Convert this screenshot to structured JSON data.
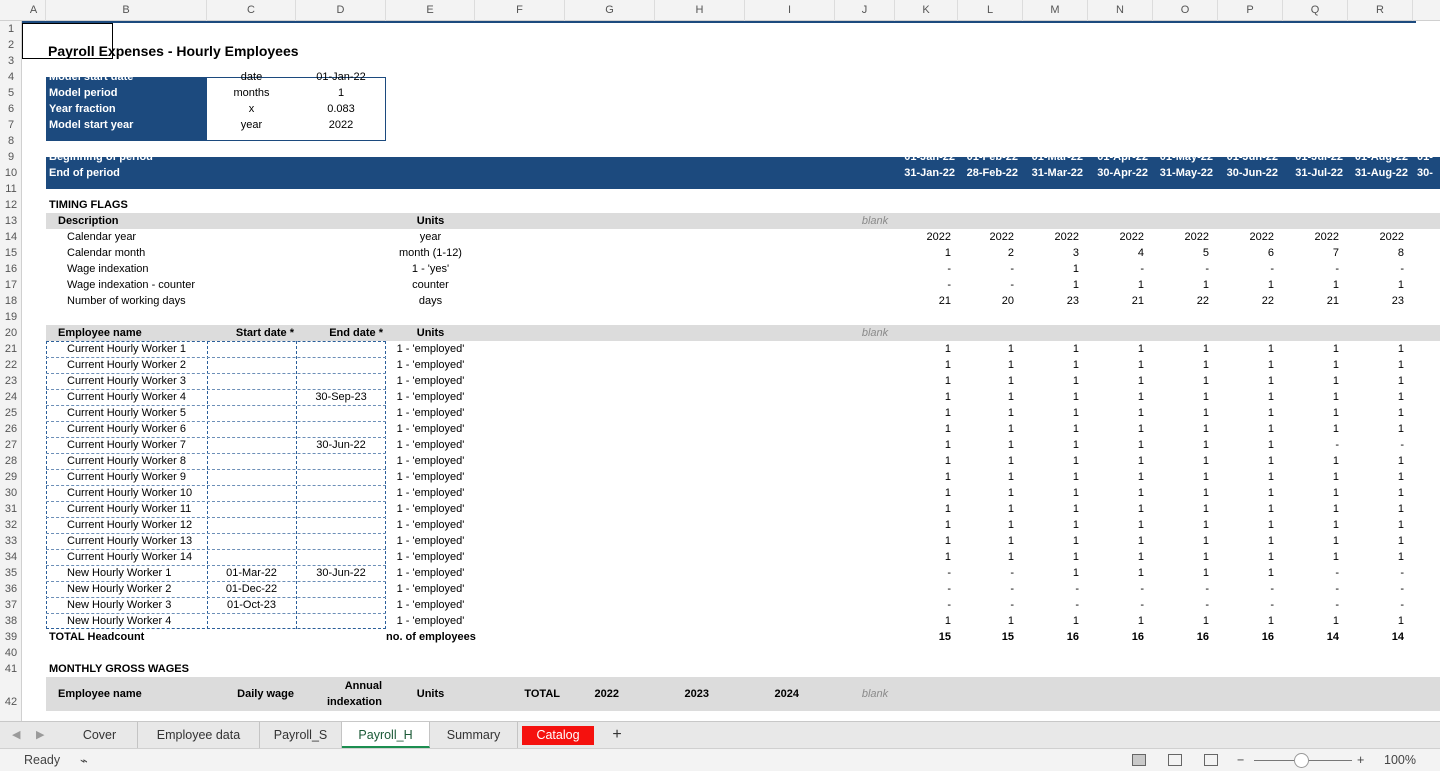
{
  "columns": [
    "A",
    "B",
    "C",
    "D",
    "E",
    "F",
    "G",
    "H",
    "I",
    "J",
    "K",
    "L",
    "M",
    "N",
    "O",
    "P",
    "Q",
    "R"
  ],
  "rows": [
    "1",
    "2",
    "3",
    "4",
    "5",
    "6",
    "7",
    "8",
    "9",
    "10",
    "11",
    "12",
    "13",
    "14",
    "15",
    "16",
    "17",
    "18",
    "19",
    "20",
    "21",
    "22",
    "23",
    "24",
    "25",
    "26",
    "27",
    "28",
    "29",
    "30",
    "31",
    "32",
    "33",
    "34",
    "35",
    "36",
    "37",
    "38",
    "39",
    "40",
    "41",
    "42"
  ],
  "title": "Payroll Expenses - Hourly Employees",
  "model_params": [
    {
      "label": "Model start date",
      "unit": "date",
      "value": "01-Jan-22"
    },
    {
      "label": "Model period",
      "unit": "months",
      "value": "1"
    },
    {
      "label": "Year fraction",
      "unit": "x",
      "value": "0.083"
    },
    {
      "label": "Model start year",
      "unit": "year",
      "value": "2022"
    }
  ],
  "period_header": {
    "begin_label": "Beginning of period",
    "end_label": "End of period",
    "begin": [
      "01-Jan-22",
      "01-Feb-22",
      "01-Mar-22",
      "01-Apr-22",
      "01-May-22",
      "01-Jun-22",
      "01-Jul-22",
      "01-Aug-22",
      "01-"
    ],
    "end": [
      "31-Jan-22",
      "28-Feb-22",
      "31-Mar-22",
      "30-Apr-22",
      "31-May-22",
      "30-Jun-22",
      "31-Jul-22",
      "31-Aug-22",
      "30-"
    ]
  },
  "timing": {
    "section_title": "TIMING FLAGS",
    "header_description": "Description",
    "header_units": "Units",
    "blank": "blank",
    "rows": [
      {
        "desc": "Calendar year",
        "units": "year",
        "values": [
          "2022",
          "2022",
          "2022",
          "2022",
          "2022",
          "2022",
          "2022",
          "2022"
        ]
      },
      {
        "desc": "Calendar month",
        "units": "month (1-12)",
        "values": [
          "1",
          "2",
          "3",
          "4",
          "5",
          "6",
          "7",
          "8"
        ]
      },
      {
        "desc": "Wage indexation",
        "units": "1 - 'yes'",
        "values": [
          "-",
          "-",
          "1",
          "-",
          "-",
          "-",
          "-",
          "-"
        ]
      },
      {
        "desc": "Wage indexation - counter",
        "units": "counter",
        "values": [
          "-",
          "-",
          "1",
          "1",
          "1",
          "1",
          "1",
          "1"
        ]
      },
      {
        "desc": "Number of working days",
        "units": "days",
        "values": [
          "21",
          "20",
          "23",
          "21",
          "22",
          "22",
          "21",
          "23"
        ]
      }
    ]
  },
  "employees": {
    "header_name": "Employee name",
    "header_start": "Start date *",
    "header_end": "End date *",
    "header_units": "Units",
    "blank": "blank",
    "unit_text": "1 - 'employed'",
    "rows": [
      {
        "name": "Current Hourly Worker 1",
        "start": "",
        "end": "",
        "values": [
          "1",
          "1",
          "1",
          "1",
          "1",
          "1",
          "1",
          "1"
        ]
      },
      {
        "name": "Current Hourly Worker 2",
        "start": "",
        "end": "",
        "values": [
          "1",
          "1",
          "1",
          "1",
          "1",
          "1",
          "1",
          "1"
        ]
      },
      {
        "name": "Current Hourly Worker 3",
        "start": "",
        "end": "",
        "values": [
          "1",
          "1",
          "1",
          "1",
          "1",
          "1",
          "1",
          "1"
        ]
      },
      {
        "name": "Current Hourly Worker 4",
        "start": "",
        "end": "30-Sep-23",
        "values": [
          "1",
          "1",
          "1",
          "1",
          "1",
          "1",
          "1",
          "1"
        ]
      },
      {
        "name": "Current Hourly Worker 5",
        "start": "",
        "end": "",
        "values": [
          "1",
          "1",
          "1",
          "1",
          "1",
          "1",
          "1",
          "1"
        ]
      },
      {
        "name": "Current Hourly Worker 6",
        "start": "",
        "end": "",
        "values": [
          "1",
          "1",
          "1",
          "1",
          "1",
          "1",
          "1",
          "1"
        ]
      },
      {
        "name": "Current Hourly Worker 7",
        "start": "",
        "end": "30-Jun-22",
        "values": [
          "1",
          "1",
          "1",
          "1",
          "1",
          "1",
          "-",
          "-"
        ]
      },
      {
        "name": "Current Hourly Worker 8",
        "start": "",
        "end": "",
        "values": [
          "1",
          "1",
          "1",
          "1",
          "1",
          "1",
          "1",
          "1"
        ]
      },
      {
        "name": "Current Hourly Worker 9",
        "start": "",
        "end": "",
        "values": [
          "1",
          "1",
          "1",
          "1",
          "1",
          "1",
          "1",
          "1"
        ]
      },
      {
        "name": "Current Hourly Worker 10",
        "start": "",
        "end": "",
        "values": [
          "1",
          "1",
          "1",
          "1",
          "1",
          "1",
          "1",
          "1"
        ]
      },
      {
        "name": "Current Hourly Worker 11",
        "start": "",
        "end": "",
        "values": [
          "1",
          "1",
          "1",
          "1",
          "1",
          "1",
          "1",
          "1"
        ]
      },
      {
        "name": "Current Hourly Worker 12",
        "start": "",
        "end": "",
        "values": [
          "1",
          "1",
          "1",
          "1",
          "1",
          "1",
          "1",
          "1"
        ]
      },
      {
        "name": "Current Hourly Worker 13",
        "start": "",
        "end": "",
        "values": [
          "1",
          "1",
          "1",
          "1",
          "1",
          "1",
          "1",
          "1"
        ]
      },
      {
        "name": "Current Hourly Worker 14",
        "start": "",
        "end": "",
        "values": [
          "1",
          "1",
          "1",
          "1",
          "1",
          "1",
          "1",
          "1"
        ]
      },
      {
        "name": "New Hourly Worker 1",
        "start": "01-Mar-22",
        "end": "30-Jun-22",
        "values": [
          "-",
          "-",
          "1",
          "1",
          "1",
          "1",
          "-",
          "-"
        ]
      },
      {
        "name": "New Hourly Worker 2",
        "start": "01-Dec-22",
        "end": "",
        "values": [
          "-",
          "-",
          "-",
          "-",
          "-",
          "-",
          "-",
          "-"
        ]
      },
      {
        "name": "New Hourly Worker 3",
        "start": "01-Oct-23",
        "end": "",
        "values": [
          "-",
          "-",
          "-",
          "-",
          "-",
          "-",
          "-",
          "-"
        ]
      },
      {
        "name": "New Hourly Worker 4",
        "start": "",
        "end": "",
        "values": [
          "1",
          "1",
          "1",
          "1",
          "1",
          "1",
          "1",
          "1"
        ]
      }
    ],
    "total_label": "TOTAL Headcount",
    "total_units": "no. of employees",
    "total_values": [
      "15",
      "15",
      "16",
      "16",
      "16",
      "16",
      "14",
      "14"
    ]
  },
  "wages": {
    "section_title": "MONTHLY GROSS WAGES",
    "header_name": "Employee name",
    "header_daily": "Daily wage",
    "header_annual": "Annual",
    "header_indexation": "indexation",
    "header_units": "Units",
    "header_total": "TOTAL",
    "years": [
      "2022",
      "2023",
      "2024"
    ],
    "blank": "blank"
  },
  "tabs": [
    {
      "label": "Cover",
      "state": "normal"
    },
    {
      "label": "Employee data",
      "state": "normal"
    },
    {
      "label": "Payroll_S",
      "state": "normal"
    },
    {
      "label": "Payroll_H",
      "state": "active"
    },
    {
      "label": "Summary",
      "state": "normal"
    },
    {
      "label": "Catalog",
      "state": "red"
    }
  ],
  "add_sheet": "+",
  "status": {
    "ready": "Ready",
    "zoom": "100%",
    "zoom_minus": "−",
    "zoom_plus": "+",
    "zoom_level": 0.5
  }
}
